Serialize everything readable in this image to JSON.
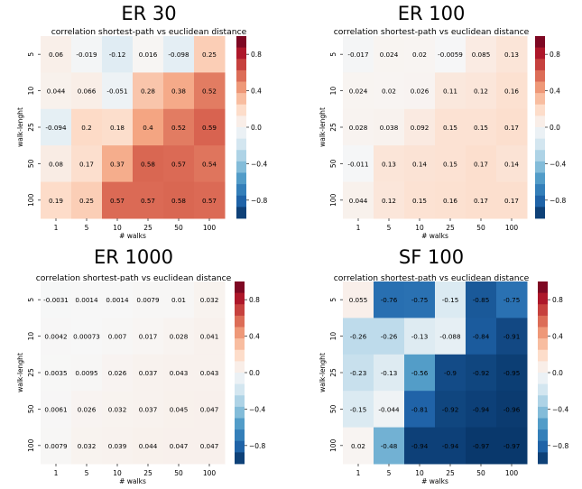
{
  "figure": {
    "colorbar_ticks": [
      {
        "value": 0.8,
        "label": "0.8"
      },
      {
        "value": 0.4,
        "label": "0.4"
      },
      {
        "value": 0.0,
        "label": "0.0"
      },
      {
        "value": -0.4,
        "label": "−0.4"
      },
      {
        "value": -0.8,
        "label": "−0.8"
      }
    ]
  },
  "chart_data": [
    {
      "type": "heatmap",
      "title": "ER 30",
      "subtitle": "correlation shortest-path vs euclidean distance",
      "xlabel": "# walks",
      "ylabel": "walk-lenght",
      "x_categories": [
        "1",
        "5",
        "10",
        "25",
        "50",
        "100"
      ],
      "y_categories": [
        "5",
        "10",
        "25",
        "50",
        "100"
      ],
      "values": [
        [
          0.06,
          -0.019,
          -0.12,
          0.016,
          -0.098,
          0.25
        ],
        [
          0.044,
          0.066,
          -0.051,
          0.28,
          0.38,
          0.52
        ],
        [
          -0.094,
          0.2,
          0.18,
          0.4,
          0.52,
          0.59
        ],
        [
          0.08,
          0.17,
          0.37,
          0.58,
          0.57,
          0.54
        ],
        [
          0.19,
          0.25,
          0.57,
          0.57,
          0.58,
          0.57
        ]
      ],
      "labels": [
        [
          "0.06",
          "-0.019",
          "-0.12",
          "0.016",
          "-0.098",
          "0.25"
        ],
        [
          "0.044",
          "0.066",
          "-0.051",
          "0.28",
          "0.38",
          "0.52"
        ],
        [
          "-0.094",
          "0.2",
          "0.18",
          "0.4",
          "0.52",
          "0.59"
        ],
        [
          "0.08",
          "0.17",
          "0.37",
          "0.58",
          "0.57",
          "0.54"
        ],
        [
          "0.19",
          "0.25",
          "0.57",
          "0.57",
          "0.58",
          "0.57"
        ]
      ],
      "colorscale": "RdBu_r",
      "vmin": -1,
      "vmax": 1,
      "colorbar": true
    },
    {
      "type": "heatmap",
      "title": "ER 100",
      "subtitle": "correlation shortest-path vs euclidean distance",
      "xlabel": "# walks",
      "ylabel": "walk-lenght",
      "x_categories": [
        "1",
        "5",
        "10",
        "25",
        "50",
        "100"
      ],
      "y_categories": [
        "5",
        "10",
        "25",
        "50",
        "100"
      ],
      "values": [
        [
          -0.017,
          0.024,
          0.02,
          -0.0059,
          0.085,
          0.13
        ],
        [
          0.024,
          0.02,
          0.026,
          0.11,
          0.12,
          0.16
        ],
        [
          0.028,
          0.038,
          0.092,
          0.15,
          0.15,
          0.17
        ],
        [
          -0.011,
          0.13,
          0.14,
          0.15,
          0.17,
          0.14
        ],
        [
          0.044,
          0.12,
          0.15,
          0.16,
          0.17,
          0.17
        ]
      ],
      "labels": [
        [
          "-0.017",
          "0.024",
          "0.02",
          "-0.0059",
          "0.085",
          "0.13"
        ],
        [
          "0.024",
          "0.02",
          "0.026",
          "0.11",
          "0.12",
          "0.16"
        ],
        [
          "0.028",
          "0.038",
          "0.092",
          "0.15",
          "0.15",
          "0.17"
        ],
        [
          "-0.011",
          "0.13",
          "0.14",
          "0.15",
          "0.17",
          "0.14"
        ],
        [
          "0.044",
          "0.12",
          "0.15",
          "0.16",
          "0.17",
          "0.17"
        ]
      ],
      "colorscale": "RdBu_r",
      "vmin": -1,
      "vmax": 1,
      "colorbar": true
    },
    {
      "type": "heatmap",
      "title": "ER 1000",
      "subtitle": "correlation shortest-path vs euclidean distance",
      "xlabel": "# walks",
      "ylabel": "walk-lenght",
      "x_categories": [
        "1",
        "5",
        "10",
        "25",
        "50",
        "100"
      ],
      "y_categories": [
        "5",
        "10",
        "25",
        "50",
        "100"
      ],
      "values": [
        [
          -0.0031,
          0.0014,
          0.0014,
          0.0079,
          0.01,
          0.032
        ],
        [
          0.0042,
          0.00073,
          0.007,
          0.017,
          0.028,
          0.041
        ],
        [
          0.0035,
          0.0095,
          0.026,
          0.037,
          0.043,
          0.043
        ],
        [
          0.0061,
          0.026,
          0.032,
          0.037,
          0.045,
          0.047
        ],
        [
          0.0079,
          0.032,
          0.039,
          0.044,
          0.047,
          0.047
        ]
      ],
      "labels": [
        [
          "-0.0031",
          "0.0014",
          "0.0014",
          "0.0079",
          "0.01",
          "0.032"
        ],
        [
          "0.0042",
          "0.00073",
          "0.007",
          "0.017",
          "0.028",
          "0.041"
        ],
        [
          "0.0035",
          "0.0095",
          "0.026",
          "0.037",
          "0.043",
          "0.043"
        ],
        [
          "0.0061",
          "0.026",
          "0.032",
          "0.037",
          "0.045",
          "0.047"
        ],
        [
          "0.0079",
          "0.032",
          "0.039",
          "0.044",
          "0.047",
          "0.047"
        ]
      ],
      "colorscale": "RdBu_r",
      "vmin": -1,
      "vmax": 1,
      "colorbar": true
    },
    {
      "type": "heatmap",
      "title": "SF 100",
      "subtitle": "correlation shortest-path vs euclidean distance",
      "xlabel": "# walks",
      "ylabel": "walk-lenght",
      "x_categories": [
        "1",
        "5",
        "10",
        "25",
        "50",
        "100"
      ],
      "y_categories": [
        "5",
        "10",
        "25",
        "50",
        "100"
      ],
      "values": [
        [
          0.055,
          -0.76,
          -0.75,
          -0.15,
          -0.85,
          -0.75
        ],
        [
          -0.26,
          -0.26,
          -0.13,
          -0.088,
          -0.84,
          -0.91
        ],
        [
          -0.23,
          -0.13,
          -0.56,
          -0.9,
          -0.92,
          -0.95
        ],
        [
          -0.15,
          -0.044,
          -0.81,
          -0.92,
          -0.94,
          -0.96
        ],
        [
          0.02,
          -0.48,
          -0.94,
          -0.94,
          -0.97,
          -0.97
        ]
      ],
      "labels": [
        [
          "0.055",
          "-0.76",
          "-0.75",
          "-0.15",
          "-0.85",
          "-0.75"
        ],
        [
          "-0.26",
          "-0.26",
          "-0.13",
          "-0.088",
          "-0.84",
          "-0.91"
        ],
        [
          "-0.23",
          "-0.13",
          "-0.56",
          "-0.9",
          "-0.92",
          "-0.95"
        ],
        [
          "-0.15",
          "-0.044",
          "-0.81",
          "-0.92",
          "-0.94",
          "-0.96"
        ],
        [
          "0.02",
          "-0.48",
          "-0.94",
          "-0.94",
          "-0.97",
          "-0.97"
        ]
      ],
      "colorscale": "RdBu_r",
      "vmin": -1,
      "vmax": 1,
      "colorbar": true
    }
  ]
}
